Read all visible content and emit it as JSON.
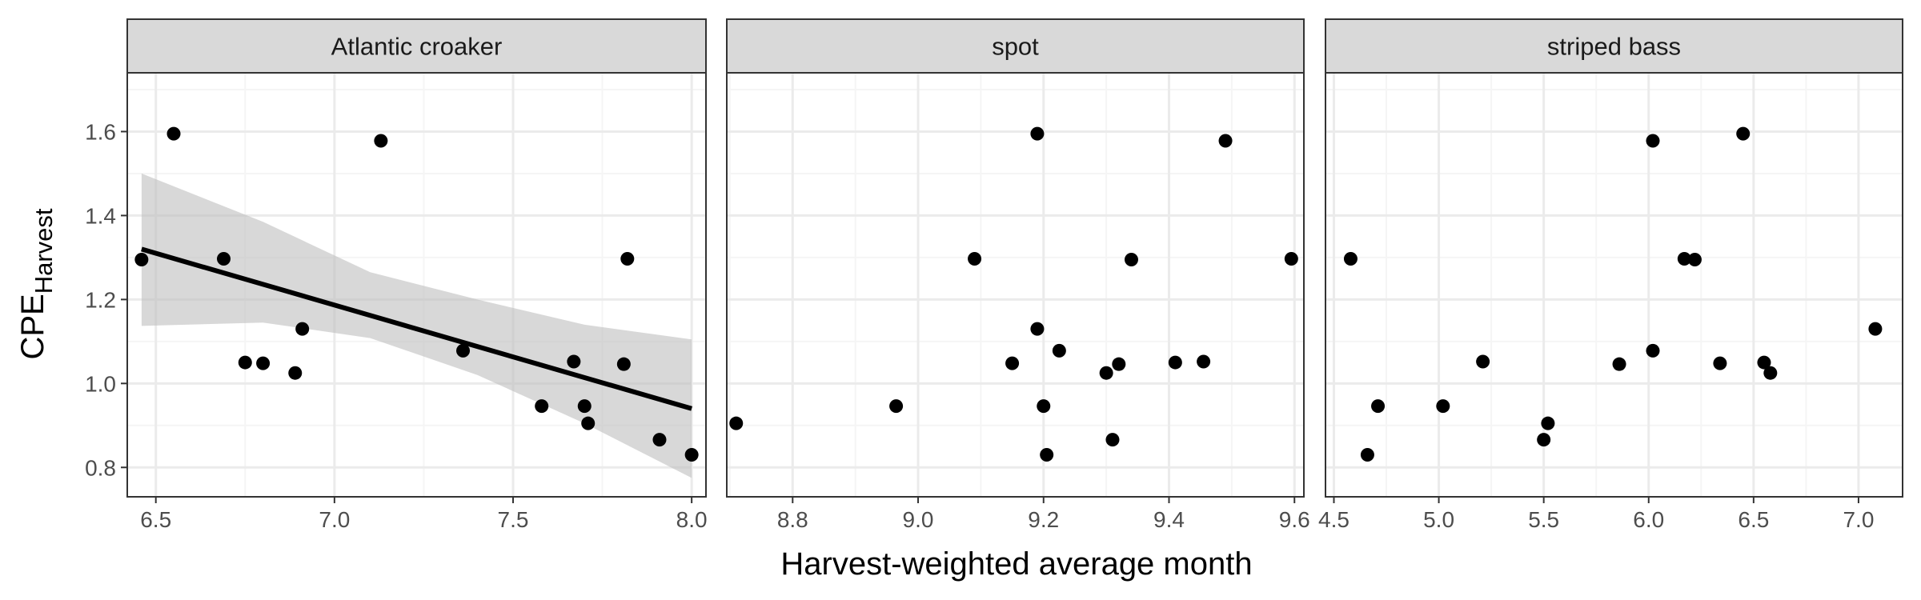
{
  "chart_data": {
    "type": "scatter",
    "xlabel": "Harvest-weighted average month",
    "ylabel": {
      "main": "CPE",
      "subscript": "Harvest"
    },
    "ylim": [
      0.73,
      1.74
    ],
    "yticks": [
      "0.8",
      "1.0",
      "1.2",
      "1.4",
      "1.6"
    ],
    "ytick_values": [
      0.8,
      1.0,
      1.2,
      1.4,
      1.6
    ],
    "grid": true,
    "colors": {
      "point": "#000000",
      "fit_line": "#000000",
      "ribbon": "#bebebe",
      "strip_bg": "#d9d9d9",
      "panel_border": "#333333",
      "grid_major": "#ebebeb",
      "grid_minor": "#f5f5f5"
    },
    "panels": [
      {
        "label": "Atlantic croaker",
        "xlim": [
          6.42,
          8.04
        ],
        "xticks": [
          "6.5",
          "7.0",
          "7.5",
          "8.0"
        ],
        "xtick_values": [
          6.5,
          7.0,
          7.5,
          8.0
        ],
        "points": [
          {
            "x": 6.46,
            "y": 1.295
          },
          {
            "x": 6.55,
            "y": 1.595
          },
          {
            "x": 6.69,
            "y": 1.297
          },
          {
            "x": 6.75,
            "y": 1.05
          },
          {
            "x": 6.8,
            "y": 1.048
          },
          {
            "x": 6.89,
            "y": 1.025
          },
          {
            "x": 6.91,
            "y": 1.13
          },
          {
            "x": 7.13,
            "y": 1.578
          },
          {
            "x": 7.36,
            "y": 1.078
          },
          {
            "x": 7.58,
            "y": 0.946
          },
          {
            "x": 7.67,
            "y": 1.052
          },
          {
            "x": 7.7,
            "y": 0.946
          },
          {
            "x": 7.71,
            "y": 0.905
          },
          {
            "x": 7.81,
            "y": 1.046
          },
          {
            "x": 7.82,
            "y": 1.297
          },
          {
            "x": 7.91,
            "y": 0.866
          },
          {
            "x": 8.0,
            "y": 0.83
          }
        ],
        "fit": {
          "x": [
            6.46,
            8.0
          ],
          "y": [
            1.32,
            0.94
          ],
          "ribbon": {
            "x": [
              6.46,
              6.8,
              7.1,
              7.4,
              7.7,
              8.0
            ],
            "lower": [
              1.137,
              1.145,
              1.108,
              1.02,
              0.905,
              0.775
            ],
            "upper": [
              1.5,
              1.385,
              1.265,
              1.2,
              1.14,
              1.105
            ]
          }
        }
      },
      {
        "label": "spot",
        "xlim": [
          8.695,
          9.615
        ],
        "xticks": [
          "8.8",
          "9.0",
          "9.2",
          "9.4",
          "9.6"
        ],
        "xtick_values": [
          8.8,
          9.0,
          9.2,
          9.4,
          9.6
        ],
        "points": [
          {
            "x": 8.71,
            "y": 0.905
          },
          {
            "x": 8.965,
            "y": 0.946
          },
          {
            "x": 9.09,
            "y": 1.297
          },
          {
            "x": 9.15,
            "y": 1.048
          },
          {
            "x": 9.19,
            "y": 1.595
          },
          {
            "x": 9.19,
            "y": 1.13
          },
          {
            "x": 9.2,
            "y": 0.946
          },
          {
            "x": 9.205,
            "y": 0.83
          },
          {
            "x": 9.225,
            "y": 1.078
          },
          {
            "x": 9.3,
            "y": 1.025
          },
          {
            "x": 9.31,
            "y": 0.866
          },
          {
            "x": 9.32,
            "y": 1.046
          },
          {
            "x": 9.34,
            "y": 1.295
          },
          {
            "x": 9.41,
            "y": 1.05
          },
          {
            "x": 9.455,
            "y": 1.052
          },
          {
            "x": 9.49,
            "y": 1.578
          },
          {
            "x": 9.595,
            "y": 1.297
          }
        ]
      },
      {
        "label": "striped bass",
        "xlim": [
          4.46,
          7.21
        ],
        "xticks": [
          "4.5",
          "5.0",
          "5.5",
          "6.0",
          "6.5",
          "7.0"
        ],
        "xtick_values": [
          4.5,
          5.0,
          5.5,
          6.0,
          6.5,
          7.0
        ],
        "points": [
          {
            "x": 4.58,
            "y": 1.297
          },
          {
            "x": 4.66,
            "y": 0.83
          },
          {
            "x": 4.71,
            "y": 0.946
          },
          {
            "x": 5.02,
            "y": 0.946
          },
          {
            "x": 5.21,
            "y": 1.052
          },
          {
            "x": 5.5,
            "y": 0.866
          },
          {
            "x": 5.52,
            "y": 0.905
          },
          {
            "x": 5.86,
            "y": 1.046
          },
          {
            "x": 6.02,
            "y": 1.578
          },
          {
            "x": 6.02,
            "y": 1.078
          },
          {
            "x": 6.17,
            "y": 1.297
          },
          {
            "x": 6.22,
            "y": 1.295
          },
          {
            "x": 6.34,
            "y": 1.048
          },
          {
            "x": 6.45,
            "y": 1.595
          },
          {
            "x": 6.55,
            "y": 1.05
          },
          {
            "x": 6.58,
            "y": 1.025
          },
          {
            "x": 7.08,
            "y": 1.13
          }
        ]
      }
    ]
  }
}
